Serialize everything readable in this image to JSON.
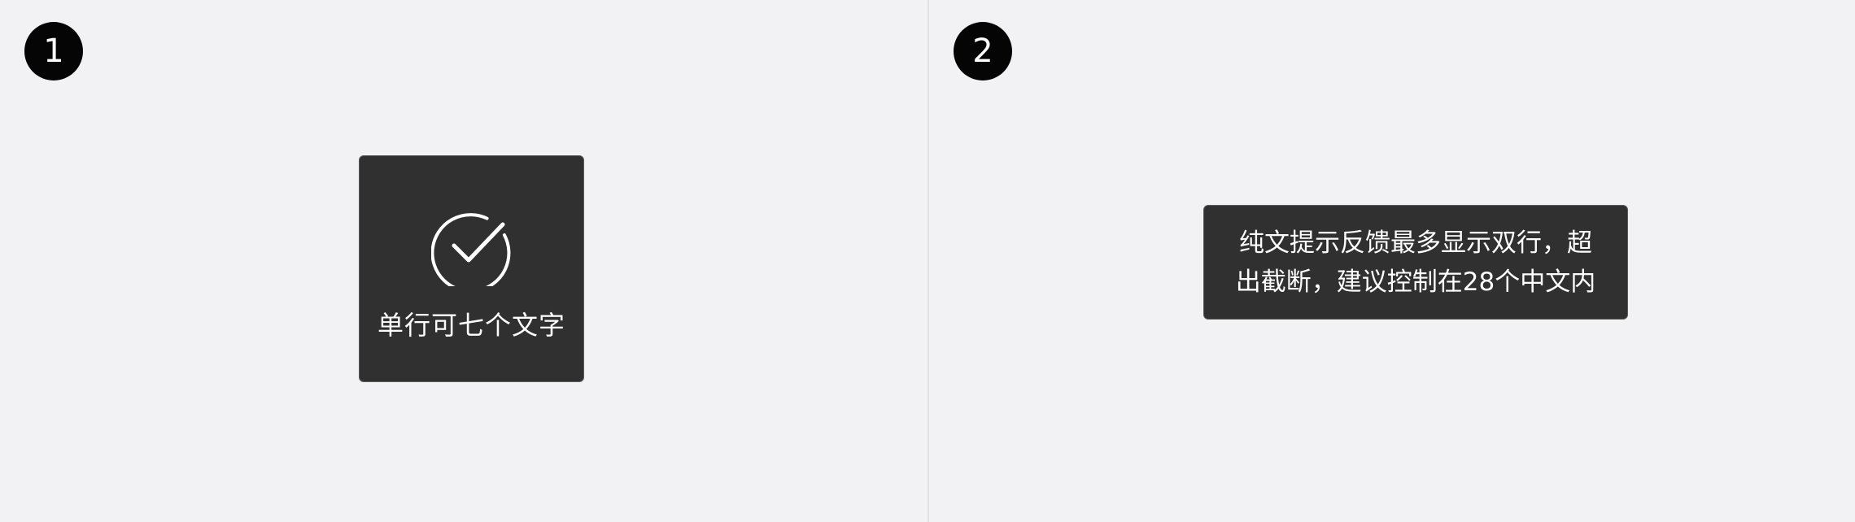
{
  "panels": [
    {
      "step": "1",
      "toast": {
        "icon": "checkmark-circle-icon",
        "label": "单行可七个文字"
      }
    },
    {
      "step": "2",
      "toast": {
        "lines": [
          "纯文提示反馈最多显示双行，超",
          "出截断，建议控制在28个中文内"
        ]
      }
    }
  ],
  "colors": {
    "background": "#f2f2f4",
    "toast": "#303030",
    "badge": "#050505",
    "text": "#ffffff"
  }
}
